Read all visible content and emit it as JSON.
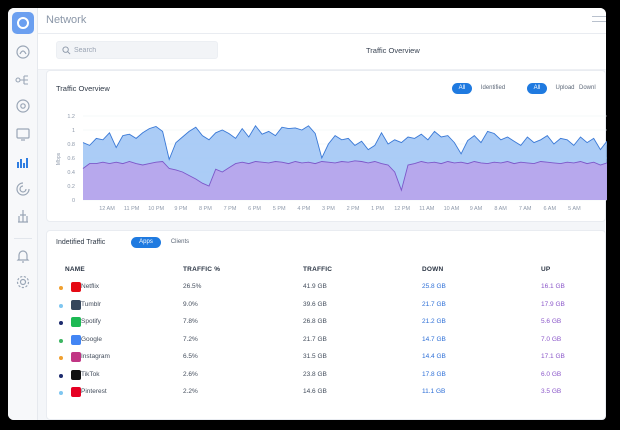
{
  "app": {
    "title": "Network"
  },
  "search": {
    "placeholder": "Search"
  },
  "page_title": "Traffic Overview",
  "overview": {
    "title": "Traffic Overview",
    "filter_a": [
      {
        "label": "All",
        "active": true
      },
      {
        "label": "Identified",
        "active": false
      }
    ],
    "filter_b": [
      {
        "label": "All",
        "active": true
      },
      {
        "label": "Upload",
        "active": false
      },
      {
        "label": "Downl",
        "active": false
      }
    ]
  },
  "chart_data": {
    "type": "area",
    "ylabel": "Mbps",
    "ylim": [
      0,
      1.2
    ],
    "yticks": [
      "0",
      "0.2",
      "0.4",
      "0.6",
      "0.8",
      "1",
      "1.2"
    ],
    "xticks": [
      "12 AM",
      "11 PM",
      "10 PM",
      "9 PM",
      "8 PM",
      "7 PM",
      "6 PM",
      "5 PM",
      "4 PM",
      "3 PM",
      "2 PM",
      "1 PM",
      "12 PM",
      "11 AM",
      "10 AM",
      "9 AM",
      "8 AM",
      "7 AM",
      "6 AM",
      "5 AM"
    ],
    "grid": true,
    "series": [
      {
        "color": "#9cc3f5",
        "values": [
          0.82,
          0.78,
          0.88,
          0.86,
          0.96,
          0.75,
          0.92,
          0.94,
          0.88,
          0.96,
          1.02,
          1.05,
          0.98,
          0.58,
          0.82,
          0.9,
          0.98,
          1.04,
          0.92,
          0.86,
          0.96,
          1.0,
          0.95,
          0.88,
          1.02,
          0.9,
          1.06,
          0.94,
          0.98,
          0.92,
          1.04,
          1.02,
          1.03,
          1.0,
          1.06,
          0.95,
          0.6,
          0.8,
          0.92,
          0.86,
          0.88,
          0.78,
          0.84,
          0.72,
          0.78,
          0.96,
          0.8,
          0.86,
          0.82,
          0.9,
          0.88,
          0.94,
          0.86,
          0.98,
          0.9,
          0.92,
          0.82,
          0.66,
          0.85,
          0.92,
          0.82,
          0.98,
          0.95,
          0.86,
          0.9,
          0.84,
          0.78,
          0.9,
          0.82,
          0.86,
          0.92,
          0.8,
          0.88,
          0.86,
          0.78,
          0.9,
          0.82,
          0.88,
          0.72,
          0.84
        ]
      },
      {
        "color": "#b8a4ec",
        "values": [
          0.45,
          0.52,
          0.52,
          0.54,
          0.52,
          0.54,
          0.52,
          0.55,
          0.52,
          0.5,
          0.52,
          0.54,
          0.55,
          0.45,
          0.43,
          0.4,
          0.35,
          0.3,
          0.24,
          0.2,
          0.44,
          0.4,
          0.46,
          0.52,
          0.54,
          0.52,
          0.55,
          0.54,
          0.53,
          0.55,
          0.54,
          0.52,
          0.55,
          0.53,
          0.54,
          0.52,
          0.55,
          0.54,
          0.53,
          0.55,
          0.54,
          0.56,
          0.55,
          0.53,
          0.55,
          0.52,
          0.5,
          0.4,
          0.14,
          0.5,
          0.52,
          0.55,
          0.53,
          0.54,
          0.52,
          0.55,
          0.53,
          0.54,
          0.52,
          0.55,
          0.53,
          0.52,
          0.54,
          0.53,
          0.55,
          0.52,
          0.54,
          0.53,
          0.52,
          0.55,
          0.54,
          0.53,
          0.52,
          0.54,
          0.53,
          0.55,
          0.52,
          0.54,
          0.5,
          0.53
        ]
      }
    ]
  },
  "identified": {
    "title": "Indetified Traffic",
    "tabs": [
      {
        "label": "Apps",
        "active": true
      },
      {
        "label": "Clients",
        "active": false
      }
    ],
    "columns": [
      "NAME",
      "TRAFFIC %",
      "TRAFFIC",
      "DOWN",
      "UP"
    ],
    "rows": [
      {
        "name": "Netflix",
        "pct": "26.5%",
        "traffic": "41.9 GB",
        "down": "25.8 GB",
        "up": "16.1 GB",
        "dot": "#f0a030",
        "icon_color": "#e50914",
        "icon": "netflix-icon"
      },
      {
        "name": "Tumblr",
        "pct": "9.0%",
        "traffic": "39.6 GB",
        "down": "21.7 GB",
        "up": "17.9 GB",
        "dot": "#7fc6f0",
        "icon_color": "#35465c",
        "icon": "tumblr-icon"
      },
      {
        "name": "Spotify",
        "pct": "7.8%",
        "traffic": "26.8 GB",
        "down": "21.2 GB",
        "up": "5.6 GB",
        "dot": "#1d2b6e",
        "icon_color": "#1db954",
        "icon": "spotify-icon"
      },
      {
        "name": "Google",
        "pct": "7.2%",
        "traffic": "21.7 GB",
        "down": "14.7 GB",
        "up": "7.0 GB",
        "dot": "#3db562",
        "icon_color": "#4285f4",
        "icon": "google-icon"
      },
      {
        "name": "Instagram",
        "pct": "6.5%",
        "traffic": "31.5 GB",
        "down": "14.4 GB",
        "up": "17.1 GB",
        "dot": "#f0a030",
        "icon_color": "#c13584",
        "icon": "instagram-icon"
      },
      {
        "name": "TikTok",
        "pct": "2.6%",
        "traffic": "23.8 GB",
        "down": "17.8 GB",
        "up": "6.0 GB",
        "dot": "#1d2b6e",
        "icon_color": "#111111",
        "icon": "tiktok-icon"
      },
      {
        "name": "Pinterest",
        "pct": "2.2%",
        "traffic": "14.6 GB",
        "down": "11.1 GB",
        "up": "3.5 GB",
        "dot": "#7fc6f0",
        "icon_color": "#e60023",
        "icon": "pinterest-icon"
      }
    ]
  }
}
